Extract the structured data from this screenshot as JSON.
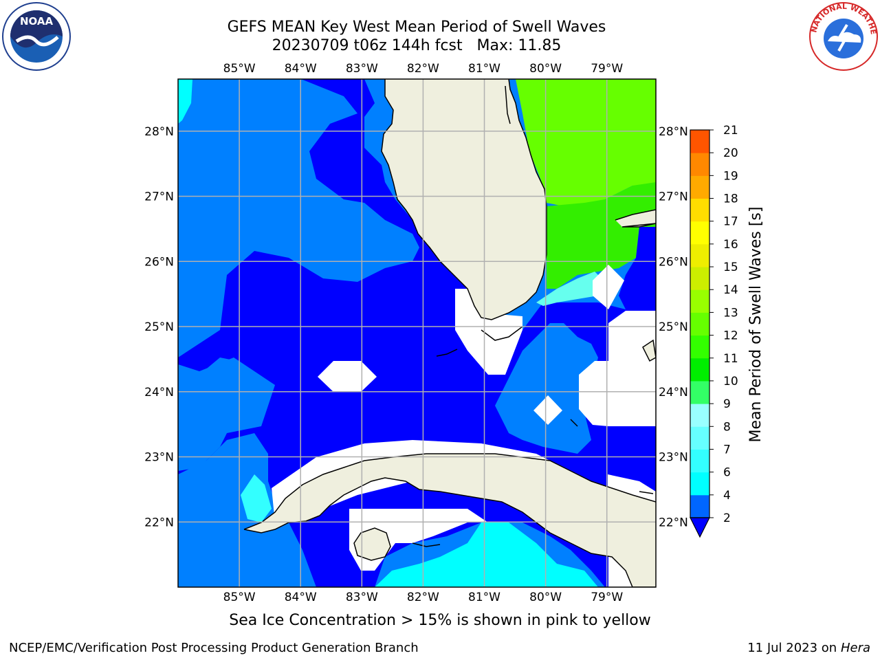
{
  "title": {
    "line1": "GEFS MEAN Key West Mean Period of Swell Waves",
    "line2": "20230709 t06z 144h fcst   Max: 11.85"
  },
  "map": {
    "lon_labels": [
      "85°W",
      "84°W",
      "83°W",
      "82°W",
      "81°W",
      "80°W",
      "79°W"
    ],
    "lat_labels": [
      "28°N",
      "27°N",
      "26°N",
      "25°N",
      "24°N",
      "23°N",
      "22°N"
    ],
    "lon_range": [
      -86.0,
      -78.2
    ],
    "lat_range": [
      21.0,
      28.8
    ],
    "colors": {
      "land": "#EFEFDE",
      "no_data": "#FFFFFF",
      "grid": "#B0B0B0",
      "coast": "#000000"
    }
  },
  "colorbar": {
    "label": "Mean Period of Swell Waves [s]",
    "ticks": [
      "21",
      "20",
      "19",
      "18",
      "17",
      "16",
      "15",
      "14",
      "13",
      "12",
      "11",
      "10",
      "9",
      "8",
      "7",
      "6",
      "4",
      "2"
    ],
    "colors": [
      "#0066FF",
      "#00FFFF",
      "#33FFFF",
      "#66FFFF",
      "#99FFFF",
      "#33FF66",
      "#00EE00",
      "#33FF00",
      "#66FF00",
      "#99FF00",
      "#CCEE00",
      "#EEEE00",
      "#FFFF00",
      "#FFDD00",
      "#FFAA00",
      "#FF8800",
      "#FF5500",
      "#FF2200",
      "#FF0000"
    ],
    "under_color": "#0000FF"
  },
  "field_colors": {
    "deep_blue": "#0000FF",
    "blue": "#0080FF",
    "cyan": "#00FFFF",
    "light_cyan": "#33FFFF",
    "pale_cyan": "#66FFEE",
    "green_bright": "#66FF00",
    "green": "#33EE00",
    "green_mid": "#22DD22"
  },
  "caption": "Sea Ice Concentration > 15% is shown in pink to yellow",
  "footer": {
    "left": "NCEP/EMC/Verification Post Processing Product Generation Branch",
    "right_prefix": "11 Jul 2023 on ",
    "right_italic": "Hera"
  },
  "logos": {
    "noaa": "noaa-logo",
    "nws": "nws-logo",
    "noaa_text": "NOAA",
    "nws_ring_text": "NATIONAL WEATHER SERVICE"
  }
}
